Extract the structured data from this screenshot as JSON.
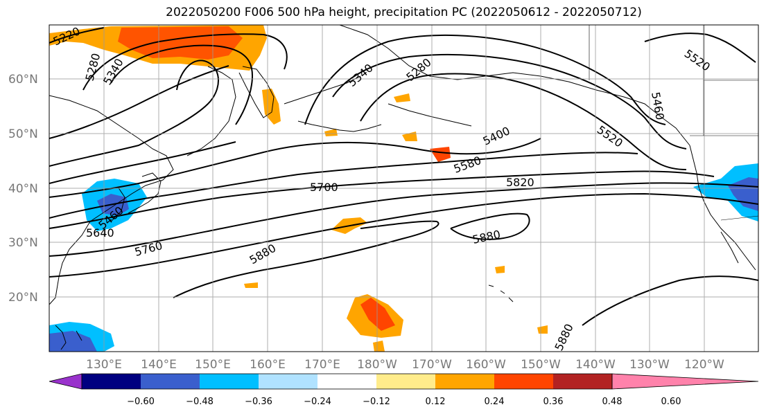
{
  "title": "2022050200 F006 500 hPa height, precipitation PC (2022050612 - 2022050712)",
  "lat_labels": [
    "60°N",
    "50°N",
    "40°N",
    "30°N",
    "20°N"
  ],
  "lon_labels": [
    "130°E",
    "140°E",
    "150°E",
    "160°E",
    "170°E",
    "180°W",
    "170°W",
    "160°W",
    "150°W",
    "140°W",
    "130°W",
    "120°W"
  ],
  "contour_labels": [
    "5220",
    "5280",
    "5340",
    "5340",
    "5280",
    "5520",
    "5460",
    "5520",
    "5400",
    "5580",
    "5700",
    "5820",
    "5640",
    "5760",
    "5880",
    "5880",
    "5880",
    "5460"
  ],
  "colorbar": {
    "ticks": [
      "−0.60",
      "−0.48",
      "−0.36",
      "−0.24",
      "−0.12",
      "0.12",
      "0.24",
      "0.36",
      "0.48",
      "0.60"
    ],
    "colors": [
      "#9932cc",
      "#000080",
      "#3a5fcd",
      "#00bfff",
      "#b0e2ff",
      "#ffffff",
      "#ffec8b",
      "#ffa500",
      "#ff4500",
      "#b22222",
      "#ff82ab"
    ]
  }
}
